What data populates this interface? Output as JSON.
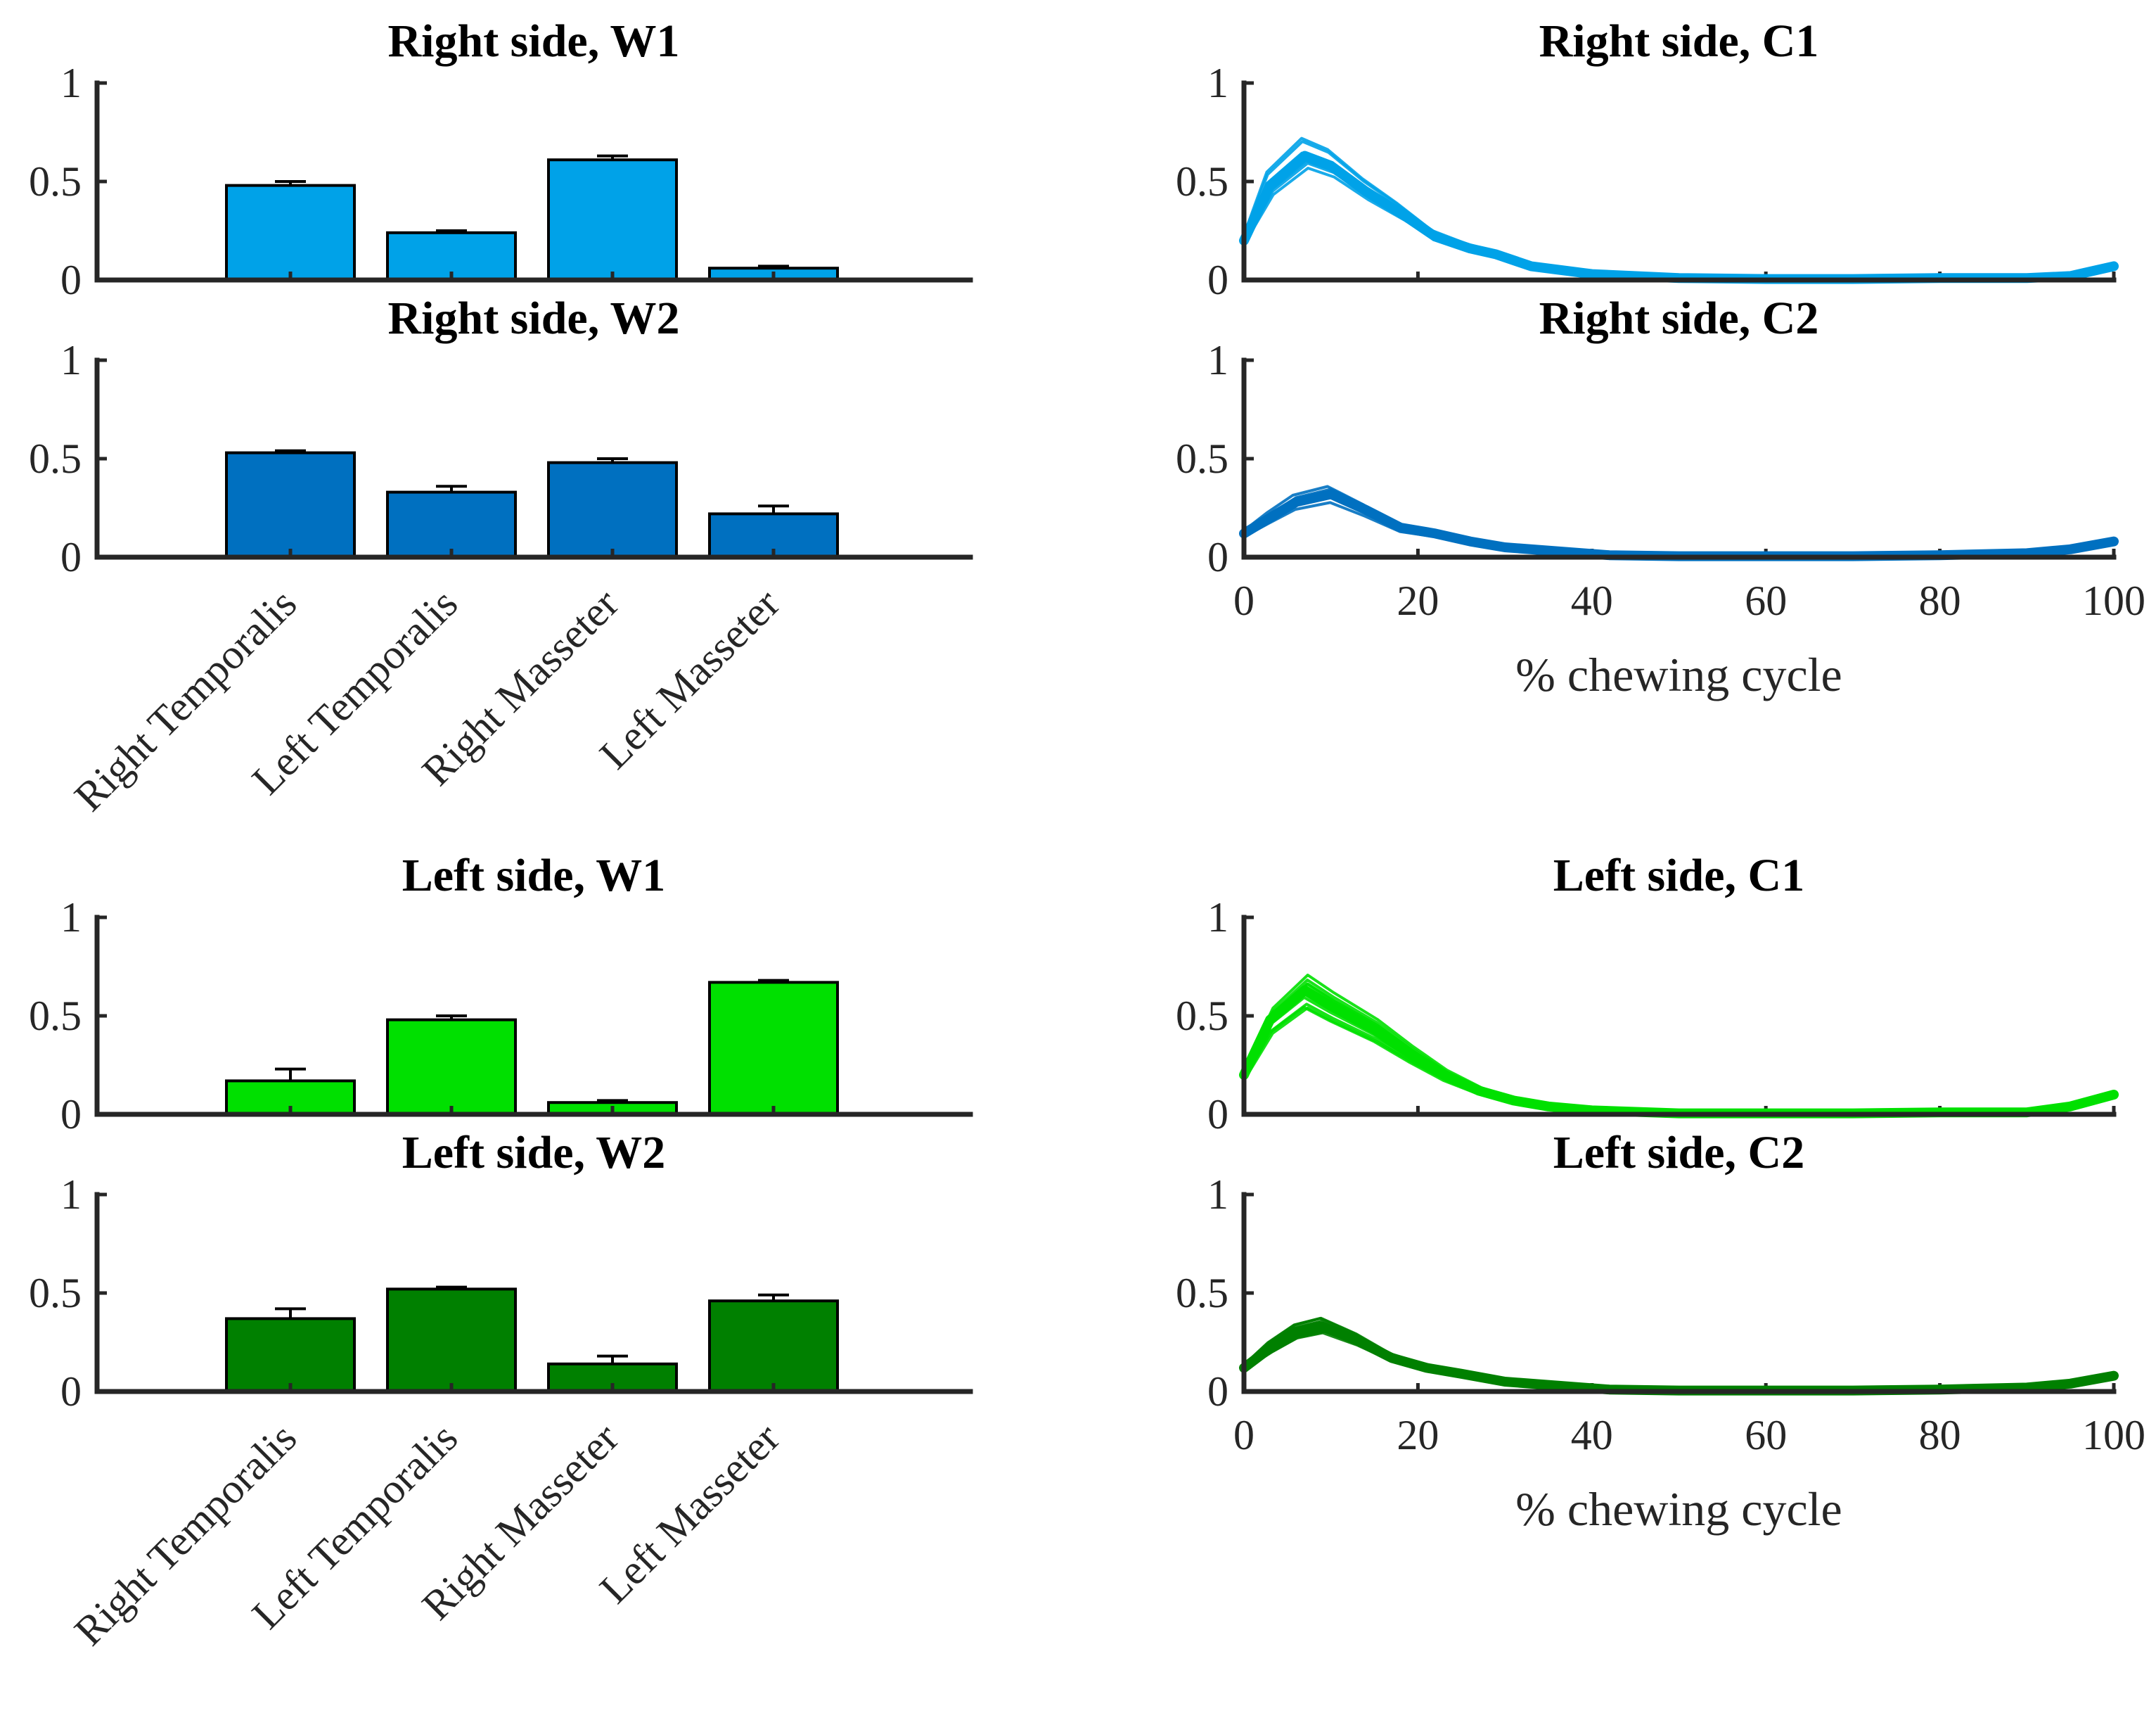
{
  "colors": {
    "right_w1": "#00A2E8",
    "right_w2": "#0070C0",
    "left_w1": "#00E000",
    "left_w2": "#008000"
  },
  "chart_data": [
    {
      "type": "bar",
      "title": "Right side, W1",
      "categories": [
        "Right Temporalis",
        "Left Temporalis",
        "Right Masseter",
        "Left Masseter"
      ],
      "values": [
        0.48,
        0.24,
        0.61,
        0.06
      ],
      "errors": [
        0.02,
        0.01,
        0.02,
        0.01
      ],
      "ylim": [
        0,
        1
      ],
      "yticks": [
        "0",
        "0.5",
        "1"
      ],
      "show_xticklabels": false,
      "color": "#00A2E8"
    },
    {
      "type": "bar",
      "title": "Right side, W2",
      "categories": [
        "Right Temporalis",
        "Left Temporalis",
        "Right Masseter",
        "Left Masseter"
      ],
      "values": [
        0.53,
        0.33,
        0.48,
        0.22
      ],
      "errors": [
        0.01,
        0.03,
        0.02,
        0.04
      ],
      "ylim": [
        0,
        1
      ],
      "yticks": [
        "0",
        "0.5",
        "1"
      ],
      "show_xticklabels": true,
      "color": "#0070C0"
    },
    {
      "type": "line",
      "title": "Right side, C1",
      "x": [
        0,
        3,
        7,
        10,
        14,
        18,
        22,
        26,
        29,
        33,
        40,
        50,
        60,
        70,
        80,
        90,
        95,
        100
      ],
      "y": [
        0.2,
        0.48,
        0.63,
        0.58,
        0.45,
        0.34,
        0.22,
        0.16,
        0.13,
        0.07,
        0.03,
        0.01,
        0.005,
        0.005,
        0.01,
        0.01,
        0.02,
        0.07
      ],
      "xlim": [
        0,
        100
      ],
      "ylim": [
        0,
        1
      ],
      "yticks": [
        "0",
        "0.5",
        "1"
      ],
      "show_xticklabels": false,
      "xlabel": "",
      "color": "#00A2E8"
    },
    {
      "type": "line",
      "title": "Right side, C2",
      "x": [
        0,
        3,
        6,
        10,
        14,
        18,
        22,
        26,
        30,
        36,
        42,
        50,
        60,
        70,
        80,
        90,
        95,
        100
      ],
      "y": [
        0.12,
        0.2,
        0.28,
        0.32,
        0.24,
        0.15,
        0.12,
        0.08,
        0.05,
        0.03,
        0.01,
        0.005,
        0.005,
        0.005,
        0.01,
        0.02,
        0.04,
        0.08
      ],
      "xlim": [
        0,
        100
      ],
      "ylim": [
        0,
        1
      ],
      "xticks": [
        "0",
        "20",
        "40",
        "60",
        "80",
        "100"
      ],
      "yticks": [
        "0",
        "0.5",
        "1"
      ],
      "show_xticklabels": true,
      "xlabel": "% chewing cycle",
      "color": "#0070C0"
    },
    {
      "type": "bar",
      "title": "Left side, W1",
      "categories": [
        "Right Temporalis",
        "Left Temporalis",
        "Right Masseter",
        "Left Masseter"
      ],
      "values": [
        0.17,
        0.48,
        0.06,
        0.67
      ],
      "errors": [
        0.06,
        0.02,
        0.01,
        0.01
      ],
      "ylim": [
        0,
        1
      ],
      "yticks": [
        "0",
        "0.5",
        "1"
      ],
      "show_xticklabels": false,
      "color": "#00E000"
    },
    {
      "type": "bar",
      "title": "Left side, W2",
      "categories": [
        "Right Temporalis",
        "Left Temporalis",
        "Right Masseter",
        "Left Masseter"
      ],
      "values": [
        0.37,
        0.52,
        0.14,
        0.46
      ],
      "errors": [
        0.05,
        0.01,
        0.04,
        0.03
      ],
      "ylim": [
        0,
        1
      ],
      "yticks": [
        "0",
        "0.5",
        "1"
      ],
      "show_xticklabels": true,
      "color": "#008000"
    },
    {
      "type": "line",
      "title": "Left side, C1",
      "x": [
        0,
        3,
        7,
        10,
        15,
        19,
        23,
        27,
        31,
        35,
        40,
        50,
        60,
        70,
        80,
        90,
        95,
        100
      ],
      "y": [
        0.2,
        0.48,
        0.63,
        0.55,
        0.43,
        0.31,
        0.2,
        0.12,
        0.07,
        0.04,
        0.02,
        0.005,
        0.005,
        0.005,
        0.01,
        0.01,
        0.04,
        0.1
      ],
      "xlim": [
        0,
        100
      ],
      "ylim": [
        0,
        1
      ],
      "yticks": [
        "0",
        "0.5",
        "1"
      ],
      "show_xticklabels": false,
      "xlabel": "",
      "color": "#00E000"
    },
    {
      "type": "line",
      "title": "Left side, C2",
      "x": [
        0,
        3,
        6,
        9,
        13,
        17,
        21,
        25,
        30,
        36,
        42,
        50,
        60,
        70,
        80,
        90,
        95,
        100
      ],
      "y": [
        0.12,
        0.22,
        0.3,
        0.33,
        0.26,
        0.17,
        0.12,
        0.09,
        0.05,
        0.03,
        0.01,
        0.005,
        0.005,
        0.005,
        0.01,
        0.02,
        0.04,
        0.08
      ],
      "xlim": [
        0,
        100
      ],
      "ylim": [
        0,
        1
      ],
      "xticks": [
        "0",
        "20",
        "40",
        "60",
        "80",
        "100"
      ],
      "yticks": [
        "0",
        "0.5",
        "1"
      ],
      "show_xticklabels": true,
      "xlabel": "% chewing cycle",
      "color": "#008000"
    }
  ]
}
